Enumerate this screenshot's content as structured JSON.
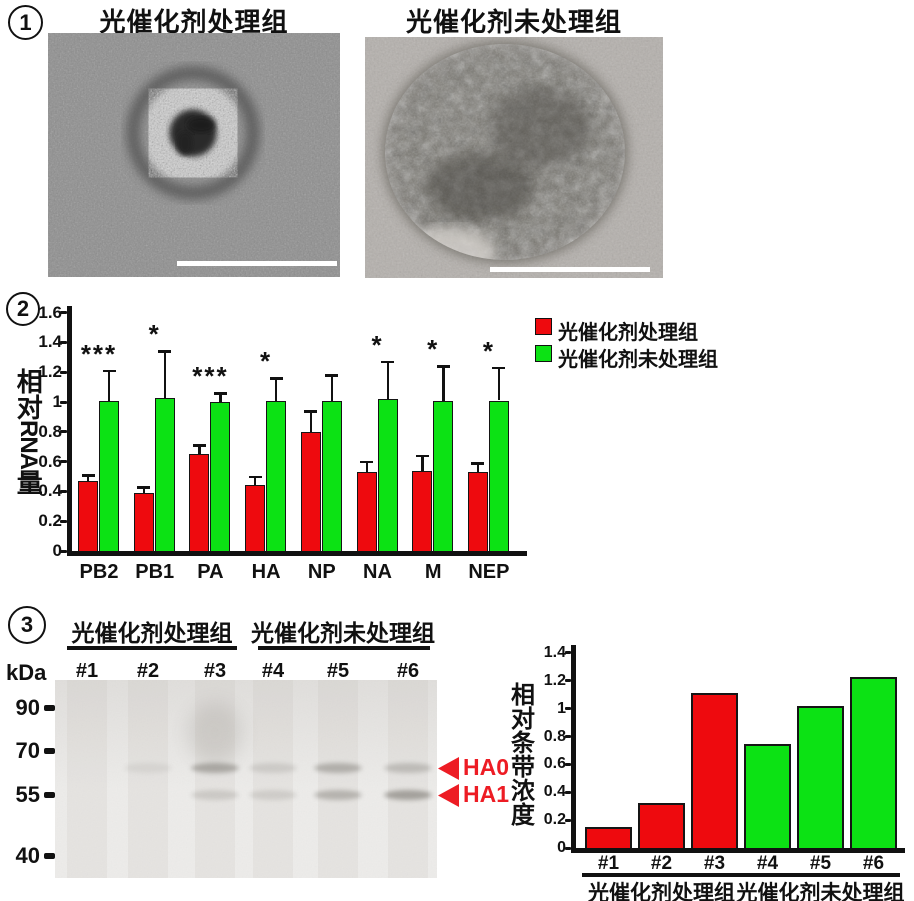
{
  "colors": {
    "treated_red": "#ee0a0e",
    "untreated_green": "#0ce214",
    "arrow_red": "#ed1c24",
    "axis_black": "#111111"
  },
  "panel1": {
    "number": "1",
    "left_title": "光催化剂处理组",
    "right_title": "光催化剂未处理组"
  },
  "panel2": {
    "number": "2",
    "ylabel_pre": "相对",
    "ylabel_mid": "RNA",
    "ylabel_post": "量",
    "legend": [
      {
        "label": "光催化剂处理组",
        "color": "#ee0a0e"
      },
      {
        "label": "光催化剂未处理组",
        "color": "#0ce214"
      }
    ]
  },
  "panel3": {
    "number": "3",
    "top_group_labels": [
      "光催化剂处理组",
      "光催化剂未处理组"
    ],
    "kda_label": "kDa",
    "mw_markers": [
      "90",
      "70",
      "55",
      "40"
    ],
    "lane_labels": [
      "#1",
      "#2",
      "#3",
      "#4",
      "#5",
      "#6"
    ],
    "band_arrow_labels": [
      "HA0",
      "HA1"
    ],
    "blot_bands": [
      {
        "lane": "#2",
        "row": "HA0",
        "intensity": 0.08
      },
      {
        "lane": "#3",
        "row": "smear",
        "intensity": 0.12
      },
      {
        "lane": "#3",
        "row": "HA0",
        "intensity": 0.35
      },
      {
        "lane": "#3",
        "row": "HA1",
        "intensity": 0.16
      },
      {
        "lane": "#4",
        "row": "HA0",
        "intensity": 0.14
      },
      {
        "lane": "#4",
        "row": "HA1",
        "intensity": 0.14
      },
      {
        "lane": "#5",
        "row": "HA0",
        "intensity": 0.32
      },
      {
        "lane": "#5",
        "row": "HA1",
        "intensity": 0.3
      },
      {
        "lane": "#6",
        "row": "HA0",
        "intensity": 0.24
      },
      {
        "lane": "#6",
        "row": "HA1",
        "intensity": 0.42
      }
    ],
    "chart_ylabel": "相对条带浓度",
    "bottom_group_labels": [
      "光催化剂处理组",
      "光催化剂未处理组"
    ]
  },
  "chart_data": [
    {
      "type": "bar",
      "title": "",
      "ylabel": "相对RNA量",
      "categories": [
        "PB2",
        "PB1",
        "PA",
        "HA",
        "NP",
        "NA",
        "M",
        "NEP"
      ],
      "series": [
        {
          "name": "光催化剂处理组",
          "color": "#ee0a0e",
          "values": [
            0.47,
            0.39,
            0.65,
            0.44,
            0.8,
            0.53,
            0.54,
            0.53
          ],
          "error_caps": [
            0.51,
            0.43,
            0.71,
            0.5,
            0.94,
            0.6,
            0.64,
            0.59
          ]
        },
        {
          "name": "光催化剂未处理组",
          "color": "#0ce214",
          "values": [
            1.01,
            1.03,
            1.0,
            1.01,
            1.01,
            1.02,
            1.01,
            1.01
          ],
          "error_caps": [
            1.21,
            1.34,
            1.06,
            1.16,
            1.18,
            1.27,
            1.24,
            1.23
          ]
        }
      ],
      "significance": [
        "***",
        "*",
        "***",
        "*",
        "",
        "*",
        "*",
        "*"
      ],
      "ylim": [
        0,
        1.6
      ],
      "ytick_step": 0.2,
      "grid": false,
      "legend_position": "right"
    },
    {
      "type": "bar",
      "title": "",
      "ylabel": "相对条带浓度",
      "categories": [
        "#1",
        "#2",
        "#3",
        "#4",
        "#5",
        "#6"
      ],
      "values": [
        0.15,
        0.32,
        1.11,
        0.75,
        1.02,
        1.23
      ],
      "bar_colors": [
        "#ee0a0e",
        "#ee0a0e",
        "#ee0a0e",
        "#0ce214",
        "#0ce214",
        "#0ce214"
      ],
      "groups": [
        {
          "label": "光催化剂处理组",
          "from": 0,
          "to": 2
        },
        {
          "label": "光催化剂未处理组",
          "from": 3,
          "to": 5
        }
      ],
      "ylim": [
        0,
        1.4
      ],
      "ytick_step": 0.2,
      "grid": false
    }
  ]
}
